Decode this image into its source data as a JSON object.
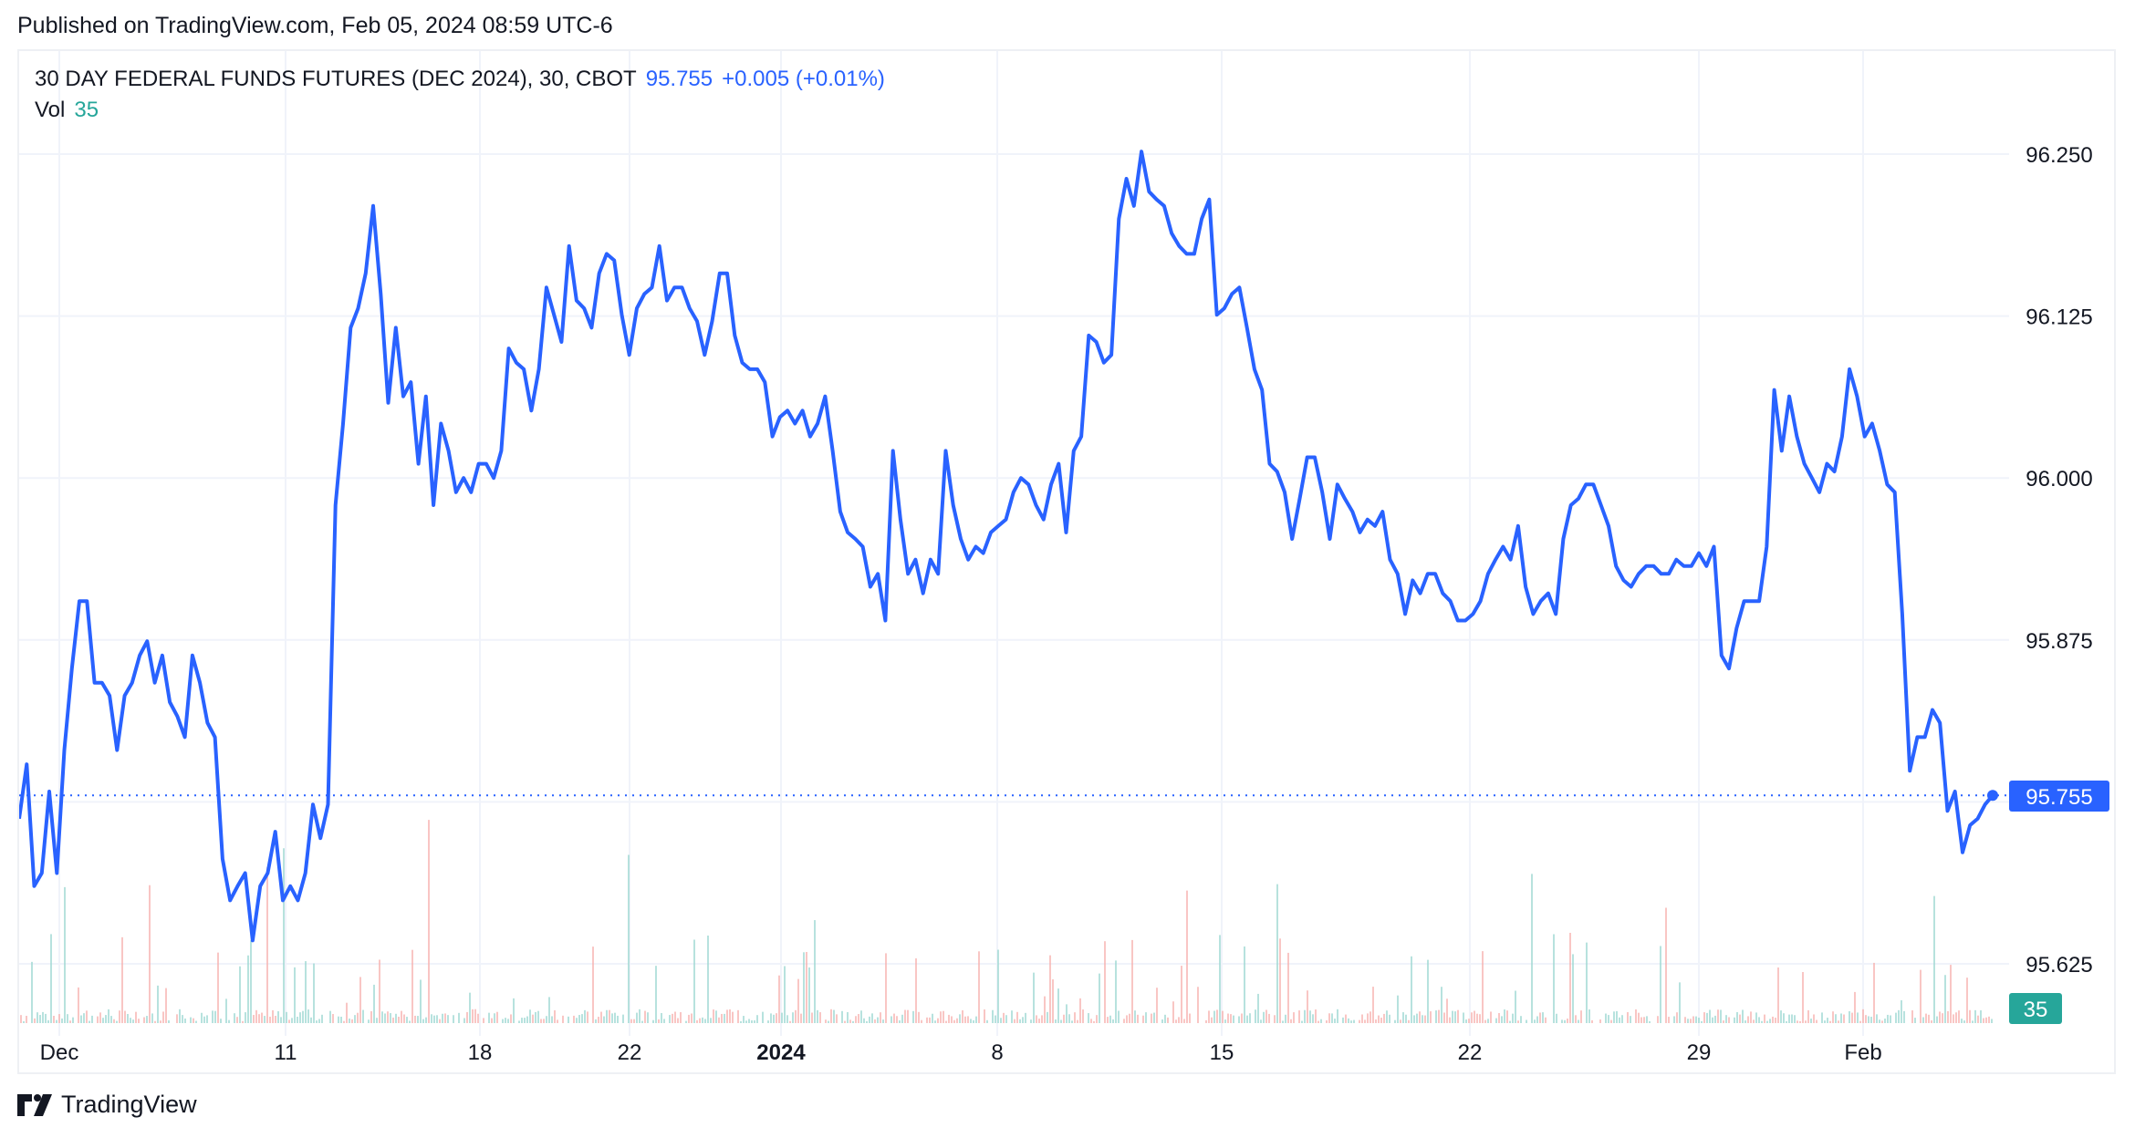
{
  "header": {
    "published": "Published on TradingView.com, Feb 05, 2024 08:59 UTC-6"
  },
  "legend": {
    "symbol": "30 DAY FEDERAL FUNDS FUTURES (DEC 2024), 30, CBOT",
    "last": "95.755",
    "change": "+0.005 (+0.01%)",
    "vol_label": "Vol",
    "vol_value": "35"
  },
  "footer": {
    "brand": "TradingView",
    "logo_icon": "tradingview-logo-icon"
  },
  "colors": {
    "line": "#2962ff",
    "vol_up": "#26a69a",
    "vol_down": "#ef5350",
    "grid": "#f0f3fa"
  },
  "chart_data": {
    "type": "line",
    "title": "30 DAY FEDERAL FUNDS FUTURES (DEC 2024), 30, CBOT",
    "x_ticks": [
      "Dec",
      "11",
      "18",
      "22",
      "2024",
      "8",
      "15",
      "22",
      "29",
      "Feb"
    ],
    "y_ticks": [
      "96.250",
      "96.125",
      "96.000",
      "95.875",
      "95.625"
    ],
    "ylim": [
      95.58,
      96.29
    ],
    "grid": true,
    "last_price": 95.755,
    "last_price_label": "95.755",
    "volume_label": "35",
    "series": [
      {
        "values": [
          95.737,
          95.779,
          95.685,
          95.695,
          95.758,
          95.695,
          95.79,
          95.853,
          95.905,
          95.905,
          95.842,
          95.842,
          95.832,
          95.79,
          95.832,
          95.842,
          95.863,
          95.874,
          95.842,
          95.863,
          95.827,
          95.816,
          95.8,
          95.863,
          95.842,
          95.811,
          95.8,
          95.706,
          95.674,
          95.685,
          95.695,
          95.643,
          95.685,
          95.695,
          95.727,
          95.674,
          95.685,
          95.674,
          95.695,
          95.748,
          95.722,
          95.748,
          95.979,
          96.042,
          96.116,
          96.131,
          96.158,
          96.21,
          96.142,
          96.058,
          96.116,
          96.063,
          96.074,
          96.011,
          96.063,
          95.979,
          96.042,
          96.021,
          95.989,
          96.0,
          95.989,
          96.011,
          96.011,
          96.0,
          96.021,
          96.1,
          96.089,
          96.084,
          96.052,
          96.084,
          96.147,
          96.126,
          96.105,
          96.179,
          96.137,
          96.131,
          96.116,
          96.158,
          96.173,
          96.168,
          96.126,
          96.095,
          96.131,
          96.142,
          96.147,
          96.179,
          96.137,
          96.147,
          96.147,
          96.131,
          96.121,
          96.095,
          96.121,
          96.158,
          96.158,
          96.11,
          96.089,
          96.084,
          96.084,
          96.074,
          96.032,
          96.047,
          96.052,
          96.042,
          96.052,
          96.032,
          96.042,
          96.063,
          96.021,
          95.974,
          95.958,
          95.953,
          95.947,
          95.916,
          95.926,
          95.89,
          96.021,
          95.968,
          95.926,
          95.937,
          95.911,
          95.937,
          95.926,
          96.021,
          95.979,
          95.953,
          95.937,
          95.947,
          95.942,
          95.958,
          95.963,
          95.968,
          95.989,
          96.0,
          95.995,
          95.979,
          95.968,
          95.995,
          96.011,
          95.958,
          96.021,
          96.032,
          96.11,
          96.105,
          96.089,
          96.095,
          96.2,
          96.231,
          96.21,
          96.252,
          96.221,
          96.215,
          96.21,
          96.189,
          96.179,
          96.173,
          96.173,
          96.2,
          96.215,
          96.126,
          96.131,
          96.142,
          96.147,
          96.116,
          96.084,
          96.068,
          96.011,
          96.005,
          95.989,
          95.953,
          95.984,
          96.016,
          96.016,
          95.989,
          95.953,
          95.995,
          95.984,
          95.974,
          95.958,
          95.968,
          95.963,
          95.974,
          95.937,
          95.926,
          95.895,
          95.921,
          95.911,
          95.926,
          95.926,
          95.911,
          95.905,
          95.89,
          95.89,
          95.895,
          95.905,
          95.926,
          95.937,
          95.947,
          95.937,
          95.963,
          95.916,
          95.895,
          95.905,
          95.911,
          95.895,
          95.953,
          95.979,
          95.984,
          95.995,
          95.995,
          95.979,
          95.963,
          95.932,
          95.921,
          95.916,
          95.926,
          95.932,
          95.932,
          95.926,
          95.926,
          95.937,
          95.932,
          95.932,
          95.942,
          95.932,
          95.947,
          95.863,
          95.853,
          95.884,
          95.905,
          95.905,
          95.905,
          95.947,
          96.068,
          96.021,
          96.063,
          96.032,
          96.011,
          96.0,
          95.989,
          96.011,
          96.005,
          96.032,
          96.084,
          96.063,
          96.032,
          96.042,
          96.021,
          95.995,
          95.989,
          95.895,
          95.774,
          95.8,
          95.8,
          95.821,
          95.811,
          95.743,
          95.758,
          95.711,
          95.732,
          95.737,
          95.748,
          95.755
        ]
      }
    ]
  }
}
